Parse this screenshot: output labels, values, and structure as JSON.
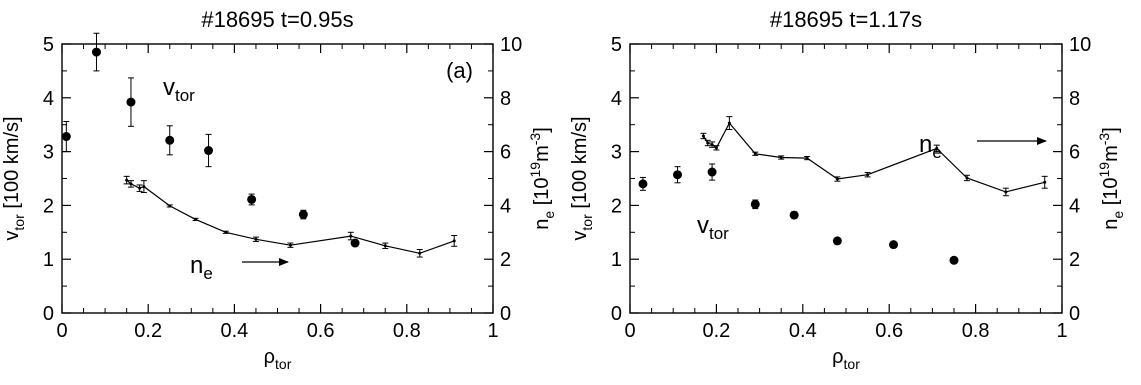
{
  "chart_data": [
    {
      "type": "scatter",
      "title": "#18695    t=0.95s",
      "panel_label": "(a)",
      "xlabel": {
        "main": "ρ",
        "sub": "tor"
      },
      "ylabel_left": {
        "main": "v",
        "sub": "tor",
        "rest": " [100 km/s]"
      },
      "ylabel_right": {
        "main": "n",
        "sub": "e",
        "rest": " [10",
        "sup": "19",
        "rest2": "m",
        "sup2": "-3",
        "end": "]"
      },
      "xlim": [
        0,
        1
      ],
      "ylim_left": [
        0,
        5
      ],
      "ylim_right": [
        0,
        10
      ],
      "x_ticks": [
        "0",
        "0.2",
        "0.4",
        "0.6",
        "0.8",
        "1"
      ],
      "y_ticks_left": [
        "0",
        "1",
        "2",
        "3",
        "4",
        "5"
      ],
      "y_ticks_right": [
        "0",
        "2",
        "4",
        "6",
        "8",
        "10"
      ],
      "annotations": {
        "vtor": {
          "main": "v",
          "sub": "tor"
        },
        "ne": {
          "main": "n",
          "sub": "e"
        }
      },
      "series": [
        {
          "name": "v_tor",
          "axis": "left",
          "style": "markers",
          "x": [
            0.01,
            0.08,
            0.16,
            0.25,
            0.34,
            0.44,
            0.56,
            0.68
          ],
          "y": [
            3.28,
            4.85,
            3.92,
            3.21,
            3.02,
            2.11,
            1.83,
            1.3
          ],
          "err": [
            0.28,
            0.35,
            0.45,
            0.27,
            0.3,
            0.1,
            0.08,
            0.05
          ]
        },
        {
          "name": "n_e",
          "axis": "right",
          "style": "line",
          "x": [
            0.15,
            0.16,
            0.18,
            0.19,
            0.25,
            0.31,
            0.38,
            0.45,
            0.53,
            0.67,
            0.75,
            0.83,
            0.91
          ],
          "y": [
            4.94,
            4.8,
            4.64,
            4.7,
            3.98,
            3.48,
            3.0,
            2.74,
            2.52,
            2.86,
            2.5,
            2.22,
            2.68
          ],
          "err": [
            0.14,
            0.12,
            0.12,
            0.22,
            0.04,
            0.04,
            0.04,
            0.08,
            0.08,
            0.14,
            0.1,
            0.14,
            0.2
          ]
        }
      ]
    },
    {
      "type": "scatter",
      "title": "#18695    t=1.17s",
      "xlabel": {
        "main": "ρ",
        "sub": "tor"
      },
      "ylabel_left": {
        "main": "v",
        "sub": "tor",
        "rest": " [100 km/s]"
      },
      "ylabel_right": {
        "main": "n",
        "sub": "e",
        "rest": " [10",
        "sup": "19",
        "rest2": "m",
        "sup2": "-3",
        "end": "]"
      },
      "xlim": [
        0,
        1
      ],
      "ylim_left": [
        0,
        5
      ],
      "ylim_right": [
        0,
        10
      ],
      "x_ticks": [
        "0",
        "0.2",
        "0.4",
        "0.6",
        "0.8",
        "1"
      ],
      "y_ticks_left": [
        "0",
        "1",
        "2",
        "3",
        "4",
        "5"
      ],
      "y_ticks_right": [
        "0",
        "2",
        "4",
        "6",
        "8",
        "10"
      ],
      "annotations": {
        "vtor": {
          "main": "v",
          "sub": "tor"
        },
        "ne": {
          "main": "n",
          "sub": "e"
        }
      },
      "series": [
        {
          "name": "v_tor",
          "axis": "left",
          "style": "markers",
          "x": [
            0.03,
            0.11,
            0.19,
            0.29,
            0.38,
            0.48,
            0.61,
            0.75
          ],
          "y": [
            2.4,
            2.57,
            2.62,
            2.02,
            1.82,
            1.34,
            1.27,
            0.98
          ],
          "err": [
            0.12,
            0.15,
            0.15,
            0.08,
            0.06,
            0.04,
            0.04,
            0.03
          ]
        },
        {
          "name": "n_e",
          "axis": "right",
          "style": "line",
          "x": [
            0.17,
            0.18,
            0.19,
            0.2,
            0.23,
            0.29,
            0.35,
            0.41,
            0.48,
            0.55,
            0.71,
            0.78,
            0.87,
            0.96
          ],
          "y": [
            6.58,
            6.32,
            6.26,
            6.14,
            7.06,
            5.92,
            5.78,
            5.76,
            4.98,
            5.14,
            6.12,
            5.02,
            4.5,
            4.86
          ],
          "err": [
            0.1,
            0.1,
            0.1,
            0.08,
            0.24,
            0.06,
            0.06,
            0.06,
            0.08,
            0.08,
            0.12,
            0.1,
            0.14,
            0.22
          ]
        }
      ]
    }
  ]
}
